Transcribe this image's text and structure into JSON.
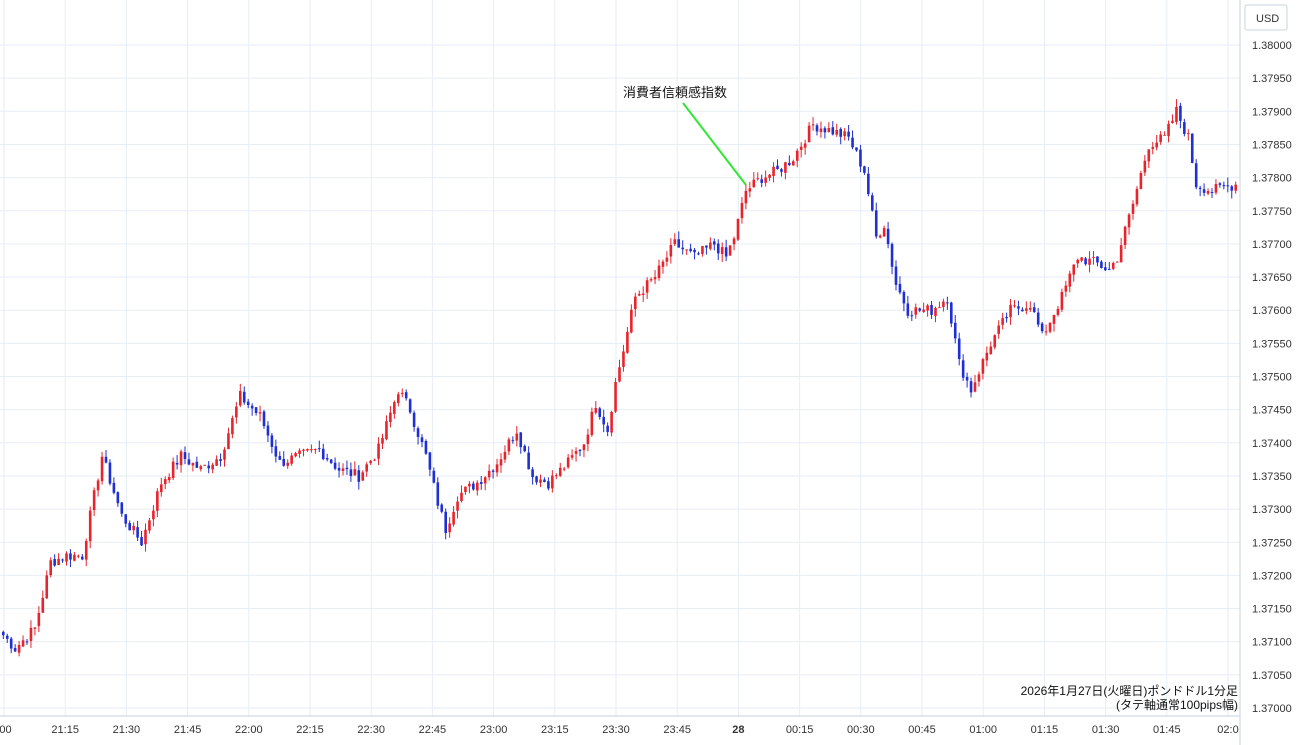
{
  "chart_data": {
    "type": "candlestick",
    "currency_label": "USD",
    "annotation": "消費者信頼感指数",
    "caption_line1": "2026年1月27日(火曜日)ポンドドル1分足",
    "caption_line2": "(タテ軸通常100pips幅)",
    "y_ticks": [
      "1.38000",
      "1.37950",
      "1.37900",
      "1.37850",
      "1.37800",
      "1.37750",
      "1.37700",
      "1.37650",
      "1.37600",
      "1.37550",
      "1.37500",
      "1.37450",
      "1.37400",
      "1.37350",
      "1.37300",
      "1.37250",
      "1.37200",
      "1.37150",
      "1.37100",
      "1.37050",
      "1.37000"
    ],
    "x_ticks": [
      ":00",
      "21:15",
      "21:30",
      "21:45",
      "22:00",
      "22:15",
      "22:30",
      "22:45",
      "23:00",
      "23:15",
      "23:30",
      "23:45",
      "28",
      "00:15",
      "00:30",
      "00:45",
      "01:00",
      "01:15",
      "01:30",
      "01:45",
      "02:0"
    ],
    "ylim": [
      1.37,
      1.3802
    ],
    "grid": true,
    "colors": {
      "up": "#e8232b",
      "down": "#1f2fd1",
      "annotation_line": "#33e633",
      "grid": "#e6eef5"
    },
    "waypoints": [
      [
        0,
        1.3711
      ],
      [
        3,
        1.3709
      ],
      [
        8,
        1.3712
      ],
      [
        12,
        1.3722
      ],
      [
        16,
        1.3723
      ],
      [
        20,
        1.3723
      ],
      [
        25,
        1.3738
      ],
      [
        30,
        1.3729
      ],
      [
        35,
        1.3725
      ],
      [
        40,
        1.3734
      ],
      [
        45,
        1.3738
      ],
      [
        50,
        1.3736
      ],
      [
        55,
        1.3738
      ],
      [
        60,
        1.3747
      ],
      [
        65,
        1.3744
      ],
      [
        70,
        1.3737
      ],
      [
        75,
        1.3738
      ],
      [
        80,
        1.3739
      ],
      [
        85,
        1.3736
      ],
      [
        90,
        1.3735
      ],
      [
        95,
        1.3739
      ],
      [
        100,
        1.3748
      ],
      [
        103,
        1.3745
      ],
      [
        107,
        1.3738
      ],
      [
        110,
        1.3731
      ],
      [
        112,
        1.3727
      ],
      [
        115,
        1.3732
      ],
      [
        120,
        1.3734
      ],
      [
        125,
        1.3737
      ],
      [
        130,
        1.3742
      ],
      [
        134,
        1.3735
      ],
      [
        138,
        1.3734
      ],
      [
        143,
        1.3737
      ],
      [
        147,
        1.374
      ],
      [
        150,
        1.3746
      ],
      [
        153,
        1.3742
      ],
      [
        155,
        1.3749
      ],
      [
        157,
        1.3754
      ],
      [
        160,
        1.3762
      ],
      [
        165,
        1.3765
      ],
      [
        170,
        1.377
      ],
      [
        175,
        1.3768
      ],
      [
        180,
        1.377
      ],
      [
        183,
        1.3768
      ],
      [
        185,
        1.3771
      ],
      [
        188,
        1.3778
      ],
      [
        192,
        1.378
      ],
      [
        196,
        1.3781
      ],
      [
        200,
        1.3783
      ],
      [
        205,
        1.3788
      ],
      [
        210,
        1.3787
      ],
      [
        214,
        1.3786
      ],
      [
        218,
        1.3781
      ],
      [
        221,
        1.3771
      ],
      [
        223,
        1.3773
      ],
      [
        226,
        1.3764
      ],
      [
        229,
        1.376
      ],
      [
        235,
        1.376
      ],
      [
        239,
        1.3762
      ],
      [
        242,
        1.3752
      ],
      [
        245,
        1.3748
      ],
      [
        250,
        1.3755
      ],
      [
        255,
        1.376
      ],
      [
        260,
        1.3761
      ],
      [
        263,
        1.3756
      ],
      [
        268,
        1.3762
      ],
      [
        272,
        1.3768
      ],
      [
        277,
        1.3767
      ],
      [
        280,
        1.3766
      ],
      [
        282,
        1.3768
      ],
      [
        286,
        1.3776
      ],
      [
        290,
        1.3785
      ],
      [
        294,
        1.3786
      ],
      [
        297,
        1.379
      ],
      [
        300,
        1.3786
      ],
      [
        302,
        1.3779
      ],
      [
        306,
        1.3778
      ],
      [
        312,
        1.3779
      ]
    ]
  }
}
